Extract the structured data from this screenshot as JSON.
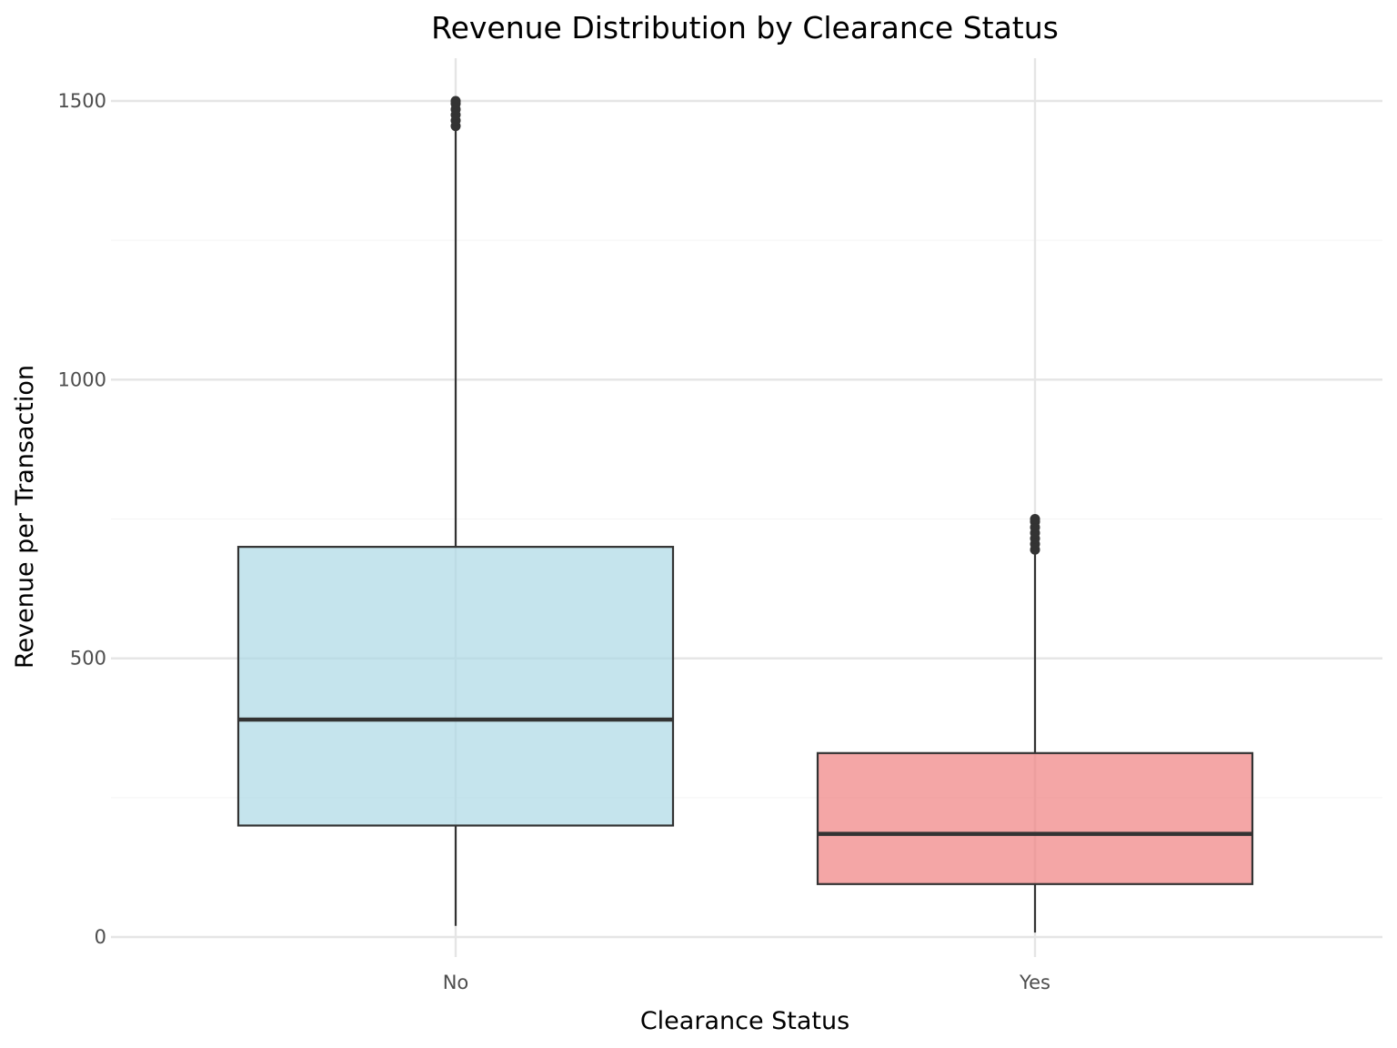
{
  "chart_data": {
    "type": "box",
    "title": "Revenue Distribution by Clearance Status",
    "xlabel": "Clearance Status",
    "ylabel": "Revenue per Transaction",
    "ylim": [
      0,
      1575
    ],
    "yticks": [
      0,
      500,
      1000,
      1500
    ],
    "grid": true,
    "legend": "none",
    "categories": [
      "No",
      "Yes"
    ],
    "boxes": [
      {
        "category": "No",
        "color": "#add8e6",
        "whisker_low": 20,
        "q1": 200,
        "median": 390,
        "q3": 700,
        "whisker_high": 1450,
        "outliers": [
          1455,
          1465,
          1475,
          1485,
          1495,
          1500
        ]
      },
      {
        "category": "Yes",
        "color": "#f08080",
        "whisker_low": 8,
        "q1": 95,
        "median": 185,
        "q3": 330,
        "whisker_high": 690,
        "outliers": [
          695,
          705,
          715,
          725,
          735,
          745,
          750
        ]
      }
    ]
  }
}
